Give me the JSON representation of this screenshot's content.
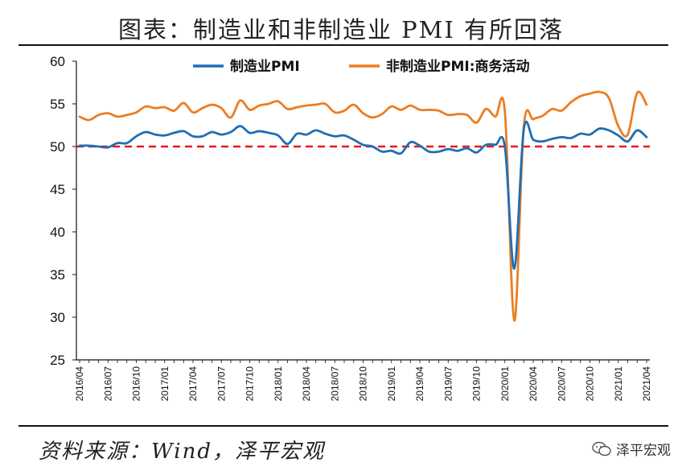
{
  "title": "图表：制造业和非制造业 PMI 有所回落",
  "source": "资料来源：Wind，泽平宏观",
  "brand": {
    "label": "泽平宏观",
    "icon": "wechat-icon"
  },
  "chart_data": {
    "type": "line",
    "title": "图表：制造业和非制造业 PMI 有所回落",
    "ylim": [
      25,
      60
    ],
    "yticks": [
      25,
      30,
      35,
      40,
      45,
      50,
      55,
      60
    ],
    "grid": false,
    "legend_position": "top",
    "reference_line": {
      "y": 50,
      "color": "#e8191c",
      "style": "dashed"
    },
    "x": [
      "2016/04",
      "2016/05",
      "2016/06",
      "2016/07",
      "2016/08",
      "2016/09",
      "2016/10",
      "2016/11",
      "2016/12",
      "2017/01",
      "2017/02",
      "2017/03",
      "2017/04",
      "2017/05",
      "2017/06",
      "2017/07",
      "2017/08",
      "2017/09",
      "2017/10",
      "2017/11",
      "2017/12",
      "2018/01",
      "2018/02",
      "2018/03",
      "2018/04",
      "2018/05",
      "2018/06",
      "2018/07",
      "2018/08",
      "2018/09",
      "2018/10",
      "2018/11",
      "2018/12",
      "2019/01",
      "2019/02",
      "2019/03",
      "2019/04",
      "2019/05",
      "2019/06",
      "2019/07",
      "2019/08",
      "2019/09",
      "2019/10",
      "2019/11",
      "2019/12",
      "2020/01",
      "2020/02",
      "2020/03",
      "2020/04",
      "2020/05",
      "2020/06",
      "2020/07",
      "2020/08",
      "2020/09",
      "2020/10",
      "2020/11",
      "2020/12",
      "2021/01",
      "2021/02",
      "2021/03",
      "2021/04"
    ],
    "xtick_labels": [
      "2016/04",
      "2016/07",
      "2016/10",
      "2017/01",
      "2017/04",
      "2017/07",
      "2017/10",
      "2018/01",
      "2018/04",
      "2018/07",
      "2018/10",
      "2019/01",
      "2019/04",
      "2019/07",
      "2019/10",
      "2020/01",
      "2020/04",
      "2020/07",
      "2020/10",
      "2021/01",
      "2021/04"
    ],
    "series": [
      {
        "name": "制造业PMI",
        "color": "#1f6eb5",
        "values": [
          50.1,
          50.1,
          50.0,
          49.9,
          50.4,
          50.4,
          51.2,
          51.7,
          51.4,
          51.3,
          51.6,
          51.8,
          51.2,
          51.2,
          51.7,
          51.4,
          51.7,
          52.4,
          51.6,
          51.8,
          51.6,
          51.3,
          50.3,
          51.5,
          51.4,
          51.9,
          51.5,
          51.2,
          51.3,
          50.8,
          50.2,
          50.0,
          49.4,
          49.5,
          49.2,
          50.5,
          50.1,
          49.4,
          49.4,
          49.7,
          49.5,
          49.8,
          49.3,
          50.2,
          50.2,
          50.0,
          35.7,
          52.0,
          50.8,
          50.6,
          50.9,
          51.1,
          51.0,
          51.5,
          51.4,
          52.1,
          51.9,
          51.3,
          50.6,
          51.9,
          51.1
        ]
      },
      {
        "name": "非制造业PMI:商务活动",
        "color": "#ec7d22",
        "values": [
          53.5,
          53.1,
          53.7,
          53.9,
          53.5,
          53.7,
          54.0,
          54.7,
          54.5,
          54.6,
          54.2,
          55.1,
          54.0,
          54.5,
          54.9,
          54.5,
          53.4,
          55.4,
          54.3,
          54.8,
          55.0,
          55.3,
          54.4,
          54.6,
          54.8,
          54.9,
          55.0,
          54.0,
          54.2,
          54.9,
          53.9,
          53.4,
          53.8,
          54.7,
          54.3,
          54.8,
          54.3,
          54.3,
          54.2,
          53.7,
          53.8,
          53.7,
          52.8,
          54.4,
          53.5,
          54.1,
          29.6,
          52.3,
          53.2,
          53.6,
          54.4,
          54.2,
          55.2,
          55.9,
          56.2,
          56.4,
          55.7,
          52.4,
          51.4,
          56.3,
          54.9
        ]
      }
    ]
  }
}
